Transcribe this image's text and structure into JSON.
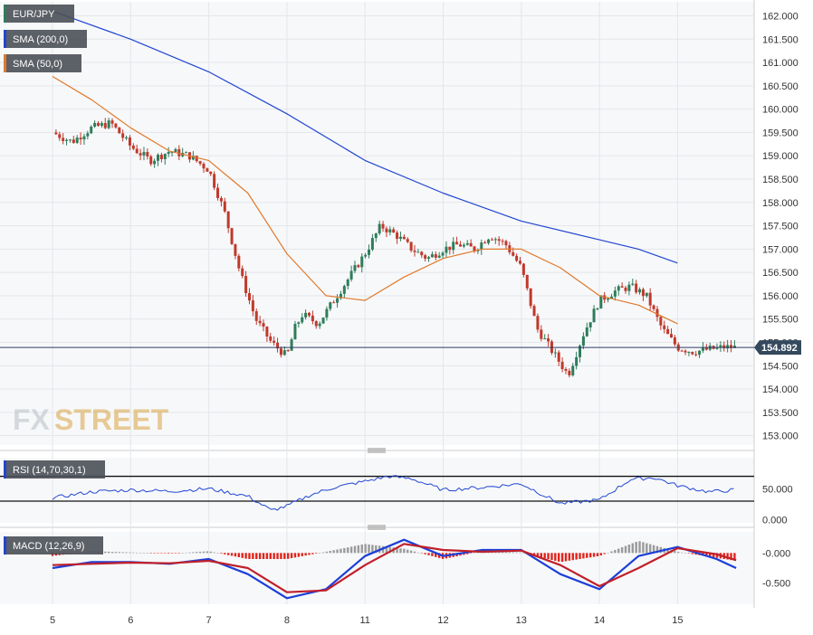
{
  "colors": {
    "background": "#ffffff",
    "plot_bg": "#f7f8fa",
    "grid": "#e4e6ea",
    "separator": "#c9ccd2",
    "axis_text": "#333333",
    "candle_up": "#2e7d5b",
    "candle_down": "#c0392b",
    "sma200": "#2146d0",
    "sma50": "#e07a2c",
    "rsi_line": "#2146d0",
    "macd_line": "#1b3fd8",
    "signal_line": "#c0202a",
    "hist_pos": "#9a9a9a",
    "hist_neg": "#e0241c",
    "label_bg": "#4a4f57",
    "price_tag_bg": "#34495e",
    "logo_text": "#d9a441"
  },
  "legend": {
    "main": [
      {
        "label": "EUR/JPY",
        "color": "#2e7d5b"
      },
      {
        "label": "SMA (200,0)",
        "color": "#2146d0"
      },
      {
        "label": "SMA (50,0)",
        "color": "#e07a2c"
      }
    ],
    "rsi": {
      "label": "RSI (14,70,30,1)",
      "color": "#2146d0"
    },
    "macd": {
      "label": "MACD (12,26,9)",
      "color": "#2146d0"
    }
  },
  "logo": {
    "part1": "FX",
    "part2": "STREET"
  },
  "last_price_label": "154.892",
  "chart_data": [
    {
      "panel": "price",
      "type": "line",
      "title": "EUR/JPY",
      "x_ticks": [
        "5",
        "6",
        "7",
        "8",
        "11",
        "12",
        "13",
        "14",
        "15"
      ],
      "y_ticks": [
        "153.000",
        "153.500",
        "154.000",
        "154.500",
        "155.000",
        "155.500",
        "156.000",
        "156.500",
        "157.000",
        "157.500",
        "158.000",
        "158.500",
        "159.000",
        "159.500",
        "160.000",
        "160.500",
        "161.000",
        "161.500",
        "162.000"
      ],
      "ylim": [
        152.8,
        162.3
      ],
      "last_price": 154.892,
      "x": [
        0,
        0.25,
        0.5,
        0.75,
        1,
        1.25,
        1.5,
        1.75,
        2,
        2.2,
        2.4,
        2.6,
        2.8,
        3,
        3.1,
        3.2,
        3.4,
        3.6,
        3.8,
        4,
        4.2,
        4.4,
        4.6,
        4.8,
        5,
        5.2,
        5.4,
        5.6,
        5.8,
        6,
        6.2,
        6.4,
        6.6,
        6.8,
        7,
        7.2,
        7.4,
        7.6,
        7.8,
        8,
        8.2,
        8.4,
        8.6,
        8.75
      ],
      "close": [
        159.5,
        159.3,
        159.6,
        159.7,
        159.2,
        158.9,
        159.1,
        159.0,
        158.7,
        157.8,
        156.5,
        155.5,
        155.0,
        154.7,
        155.3,
        155.6,
        155.4,
        155.9,
        156.4,
        156.9,
        157.5,
        157.3,
        157.0,
        156.8,
        157.0,
        157.1,
        157.0,
        157.3,
        157.1,
        156.6,
        155.3,
        154.8,
        154.3,
        155.2,
        155.9,
        156.1,
        156.2,
        156.0,
        155.3,
        154.892,
        154.8,
        154.85,
        154.9,
        154.892
      ],
      "series": [
        {
          "name": "SMA (200,0)",
          "x": [
            0,
            1,
            2,
            3,
            4,
            5,
            6,
            7,
            7.5,
            8
          ],
          "values": [
            162.1,
            161.5,
            160.8,
            159.9,
            158.9,
            158.2,
            157.6,
            157.2,
            157.0,
            156.7
          ]
        },
        {
          "name": "SMA (50,0)",
          "x": [
            0,
            0.5,
            1,
            1.5,
            2,
            2.5,
            3,
            3.5,
            4,
            4.5,
            5,
            5.5,
            6,
            6.5,
            7,
            7.5,
            8
          ],
          "values": [
            160.7,
            160.2,
            159.6,
            159.1,
            158.9,
            158.2,
            156.9,
            156.0,
            155.9,
            156.4,
            156.8,
            157.0,
            157.0,
            156.6,
            156.0,
            155.8,
            155.4
          ]
        }
      ]
    },
    {
      "panel": "rsi",
      "type": "line",
      "title": "RSI (14,70,30,1)",
      "y_ticks": [
        "0.000",
        "50.000"
      ],
      "levels": [
        70,
        30
      ],
      "ylim": [
        -5,
        100
      ],
      "x": [
        0,
        0.5,
        1,
        1.5,
        2,
        2.5,
        2.8,
        3,
        3.3,
        3.6,
        4,
        4.3,
        4.6,
        5,
        5.5,
        6,
        6.5,
        7,
        7.4,
        7.7,
        8,
        8.4,
        8.75
      ],
      "values": [
        35,
        45,
        48,
        46,
        50,
        38,
        15,
        22,
        40,
        52,
        62,
        70,
        66,
        48,
        52,
        58,
        26,
        32,
        65,
        68,
        55,
        45,
        48
      ]
    },
    {
      "panel": "macd",
      "type": "line",
      "title": "MACD (12,26,9)",
      "y_ticks": [
        "-0.000",
        "-0.500"
      ],
      "ylim": [
        -0.85,
        0.35
      ],
      "x": [
        0,
        0.5,
        1,
        1.5,
        2,
        2.5,
        3,
        3.5,
        4,
        4.5,
        5,
        5.5,
        6,
        6.5,
        7,
        7.5,
        8,
        8.5,
        8.75
      ],
      "macd": [
        -0.25,
        -0.15,
        -0.15,
        -0.18,
        -0.1,
        -0.35,
        -0.75,
        -0.6,
        -0.05,
        0.22,
        -0.05,
        0.05,
        0.05,
        -0.35,
        -0.6,
        -0.05,
        0.1,
        -0.1,
        -0.25
      ],
      "signal": [
        -0.2,
        -0.18,
        -0.16,
        -0.17,
        -0.13,
        -0.25,
        -0.65,
        -0.62,
        -0.2,
        0.15,
        0.05,
        0.02,
        0.04,
        -0.2,
        -0.55,
        -0.25,
        0.08,
        -0.02,
        -0.12
      ],
      "histogram": [
        -0.05,
        0.03,
        0.01,
        -0.01,
        0.03,
        -0.1,
        -0.1,
        0.02,
        0.15,
        0.07,
        -0.1,
        0.03,
        0.01,
        -0.15,
        -0.05,
        0.2,
        0.02,
        -0.08,
        -0.13
      ]
    }
  ]
}
